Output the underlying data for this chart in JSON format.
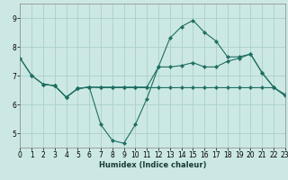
{
  "xlabel": "Humidex (Indice chaleur)",
  "xlim": [
    0,
    23
  ],
  "ylim": [
    4.5,
    9.5
  ],
  "yticks": [
    5,
    6,
    7,
    8,
    9
  ],
  "xticks": [
    0,
    1,
    2,
    3,
    4,
    5,
    6,
    7,
    8,
    9,
    10,
    11,
    12,
    13,
    14,
    15,
    16,
    17,
    18,
    19,
    20,
    21,
    22,
    23
  ],
  "bg_color": "#cce8e4",
  "grid_color": "#aad0cc",
  "line_color": "#1e6e62",
  "line1_x": [
    0,
    1,
    2,
    3,
    4,
    5,
    6,
    7,
    8,
    9,
    10,
    11,
    12,
    13,
    14,
    15,
    16,
    17,
    18,
    19,
    20,
    21,
    22,
    23
  ],
  "line1_y": [
    7.6,
    7.0,
    6.7,
    6.65,
    6.25,
    6.55,
    6.6,
    5.3,
    4.75,
    4.65,
    5.3,
    6.2,
    7.3,
    8.3,
    8.7,
    8.92,
    8.5,
    8.2,
    7.65,
    7.65,
    7.75,
    7.1,
    6.6,
    6.3
  ],
  "line2_x": [
    0,
    1,
    2,
    3,
    4,
    5,
    6,
    7,
    8,
    9,
    10,
    11,
    12,
    13,
    14,
    15,
    16,
    17,
    18,
    19,
    20,
    21,
    22,
    23
  ],
  "line2_y": [
    7.6,
    7.0,
    6.7,
    6.65,
    6.25,
    6.55,
    6.6,
    6.6,
    6.6,
    6.6,
    6.6,
    6.6,
    7.3,
    7.3,
    7.35,
    7.45,
    7.3,
    7.3,
    7.5,
    7.6,
    7.75,
    7.1,
    6.6,
    6.3
  ],
  "line3_x": [
    2,
    3,
    4,
    5,
    6,
    7,
    8,
    9,
    10,
    11,
    12,
    13,
    14,
    15,
    16,
    17,
    18,
    19,
    20,
    21,
    22,
    23
  ],
  "line3_y": [
    6.7,
    6.65,
    6.25,
    6.55,
    6.6,
    6.58,
    6.58,
    6.58,
    6.58,
    6.58,
    6.58,
    6.58,
    6.58,
    6.58,
    6.58,
    6.58,
    6.58,
    6.58,
    6.58,
    6.58,
    6.58,
    6.35
  ]
}
